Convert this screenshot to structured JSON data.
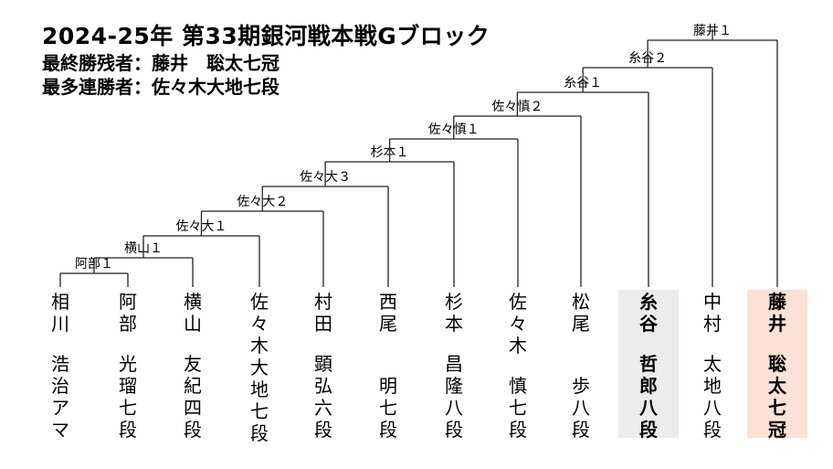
{
  "title": "2024-25年 第33期銀河戦本戦Gブロック",
  "stats": {
    "last_survivor": "最終勝残者：藤井　聡太七冠",
    "most_wins": "最多連勝者：佐々木大地七段"
  },
  "colors": {
    "highlight_gray": "#ececec",
    "highlight_peach": "#fbe1d6",
    "line": "#222222"
  },
  "players": [
    {
      "surname": "相川",
      "rank": "浩治アマ"
    },
    {
      "surname": "阿部",
      "rank": "光瑠七段"
    },
    {
      "surname": "横山",
      "rank": "友紀四段"
    },
    {
      "surname": "佐々木大地七段",
      "rank": ""
    },
    {
      "surname": "村田",
      "rank": "顕弘六段"
    },
    {
      "surname": "西尾",
      "rank": "明七段"
    },
    {
      "surname": "杉本",
      "rank": "昌隆八段"
    },
    {
      "surname": "佐々木",
      "rank": "慎七段"
    },
    {
      "surname": "松尾",
      "rank": "歩八段"
    },
    {
      "surname": "糸谷",
      "rank": "哲郎八段",
      "bold": true,
      "highlight": "gray"
    },
    {
      "surname": "中村",
      "rank": "太地八段"
    },
    {
      "surname": "藤井",
      "rank": "聡太七冠",
      "bold": true,
      "highlight": "peach"
    }
  ],
  "matches": [
    {
      "label": "阿部１"
    },
    {
      "label": "横山１"
    },
    {
      "label": "佐々大１"
    },
    {
      "label": "佐々大２"
    },
    {
      "label": "佐々大３"
    },
    {
      "label": "杉本１"
    },
    {
      "label": "佐々慎１"
    },
    {
      "label": "佐々慎２"
    },
    {
      "label": "糸谷１"
    },
    {
      "label": "糸谷２"
    },
    {
      "label": "藤井１"
    }
  ]
}
